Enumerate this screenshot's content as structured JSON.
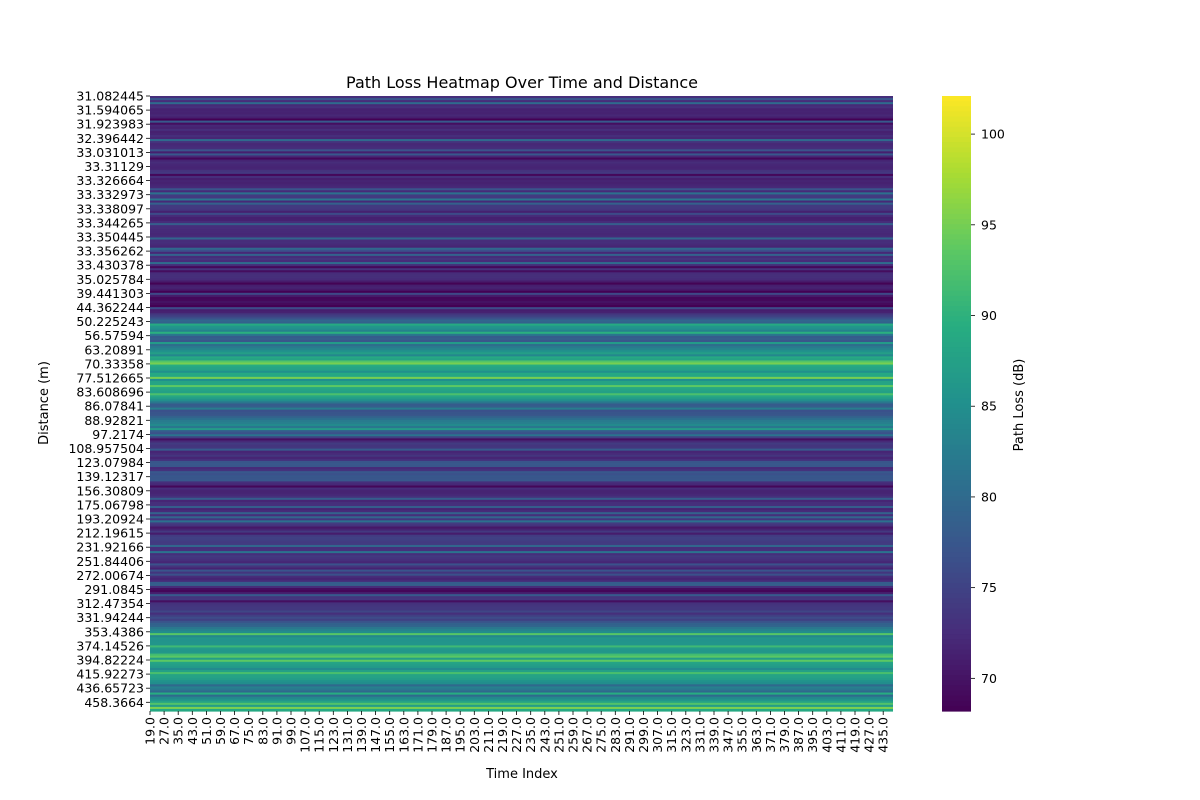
{
  "chart_data": {
    "type": "heatmap",
    "title": "Path Loss Heatmap Over Time and Distance",
    "xlabel": "Time Index",
    "ylabel": "Distance (m)",
    "colorbar_label": "Path Loss (dB)",
    "colormap": "viridis",
    "value_range": [
      68.2,
      102.1
    ],
    "colorbar_ticks": [
      70,
      75,
      80,
      85,
      90,
      95,
      100
    ],
    "x_tick_labels": [
      "19.0",
      "27.0",
      "35.0",
      "43.0",
      "51.0",
      "59.0",
      "67.0",
      "75.0",
      "83.0",
      "91.0",
      "99.0",
      "107.0",
      "115.0",
      "123.0",
      "131.0",
      "139.0",
      "147.0",
      "155.0",
      "163.0",
      "171.0",
      "179.0",
      "187.0",
      "195.0",
      "203.0",
      "211.0",
      "219.0",
      "227.0",
      "235.0",
      "243.0",
      "251.0",
      "259.0",
      "267.0",
      "275.0",
      "283.0",
      "291.0",
      "299.0",
      "307.0",
      "315.0",
      "323.0",
      "331.0",
      "339.0",
      "347.0",
      "355.0",
      "363.0",
      "371.0",
      "379.0",
      "387.0",
      "395.0",
      "403.0",
      "411.0",
      "419.0",
      "427.0",
      "435.0"
    ],
    "y_tick_labels": [
      "31.082445",
      "31.594065",
      "31.923983",
      "32.396442",
      "33.031013",
      "33.31129",
      "33.326664",
      "33.332973",
      "33.338097",
      "33.344265",
      "33.350445",
      "33.356262",
      "33.430378",
      "35.025784",
      "39.441303",
      "44.362244",
      "50.225243",
      "56.57594",
      "63.20891",
      "70.33358",
      "77.512665",
      "83.608696",
      "86.07841",
      "88.92821",
      "97.2174",
      "108.957504",
      "123.07984",
      "139.12317",
      "156.30809",
      "175.06798",
      "193.20924",
      "212.19615",
      "231.92166",
      "251.84406",
      "272.00674",
      "291.0845",
      "312.47354",
      "331.94244",
      "353.4386",
      "374.14526",
      "394.82224",
      "415.92273",
      "436.65723",
      "458.3664"
    ],
    "row_profile_db": [
      72.5,
      72.0,
      71.8,
      72.6,
      71.5,
      72.9,
      71.2,
      74.8,
      71.6,
      73.4,
      71.8,
      72.7,
      72.2,
      71.4,
      69.5,
      71.0,
      86.5,
      78.0,
      87.8,
      88.4,
      88.2,
      87.6,
      75.5,
      84.5,
      73.4,
      72.6,
      72.3,
      72.0,
      72.2,
      72.5,
      73.8,
      74.4,
      73.4,
      72.6,
      72.4,
      72.1,
      74.0,
      75.4,
      86.0,
      86.7,
      87.2,
      87.6,
      81.0,
      88.0
    ]
  }
}
